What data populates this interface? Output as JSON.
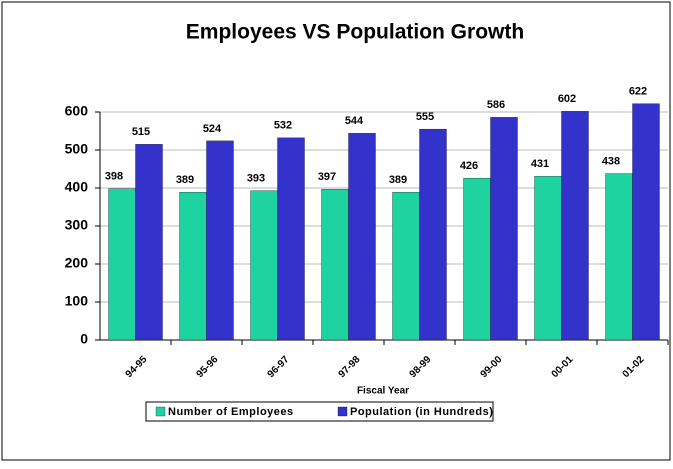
{
  "chart_data": {
    "type": "bar",
    "title": "Employees VS Population Growth",
    "x_label": "Fiscal Year",
    "categories": [
      "94-95",
      "95-96",
      "96-97",
      "97-98",
      "98-99",
      "99-00",
      "00-01",
      "01-02"
    ],
    "series": [
      {
        "name": "Number of Employees",
        "color": "#1fd3a0",
        "values": [
          398,
          389,
          393,
          397,
          389,
          426,
          431,
          438
        ]
      },
      {
        "name": "Population (in Hundreds)",
        "color": "#3333cc",
        "values": [
          515,
          524,
          532,
          544,
          555,
          586,
          602,
          622
        ]
      }
    ],
    "ylim": [
      0,
      600
    ],
    "yticks": [
      0,
      100,
      200,
      300,
      400,
      500,
      600
    ],
    "grid": true,
    "legend": "bottom"
  }
}
